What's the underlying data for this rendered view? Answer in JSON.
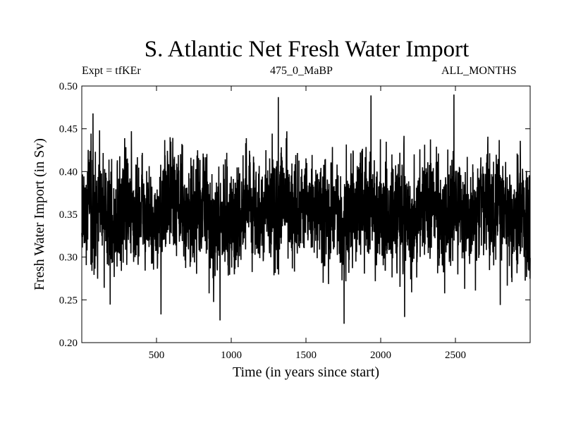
{
  "chart_data": {
    "type": "line",
    "title": "S. Atlantic Net Fresh Water Import",
    "subtitle_left": "Expt = tfKEr",
    "subtitle_center": "475_0_MaBP",
    "subtitle_right": "ALL_MONTHS",
    "xlabel": "Time (in years since start)",
    "ylabel": "Fresh Water Import (in Sv)",
    "xlim": [
      0,
      3000
    ],
    "ylim": [
      0.2,
      0.5
    ],
    "x_ticks": [
      500,
      1000,
      1500,
      2000,
      2500
    ],
    "y_ticks": [
      "0.20",
      "0.25",
      "0.30",
      "0.35",
      "0.40",
      "0.45",
      "0.50"
    ],
    "series": [
      {
        "x": [
          0,
          50,
          100,
          150,
          200,
          250,
          300,
          350,
          400,
          450,
          500,
          550,
          600,
          650,
          700,
          750,
          800,
          850,
          900,
          950,
          1000,
          1050,
          1100,
          1150,
          1200,
          1250,
          1300,
          1350,
          1400,
          1450,
          1500,
          1550,
          1600,
          1650,
          1700,
          1750,
          1800,
          1850,
          1900,
          1950,
          2000,
          2050,
          2100,
          2150,
          2200,
          2250,
          2300,
          2350,
          2400,
          2450,
          2500,
          2550,
          2600,
          2650,
          2700,
          2750,
          2800,
          2850,
          2900,
          2950,
          3000
        ],
        "values": [
          0.33,
          0.38,
          0.34,
          0.36,
          0.34,
          0.35,
          0.37,
          0.34,
          0.36,
          0.35,
          0.33,
          0.36,
          0.38,
          0.36,
          0.35,
          0.34,
          0.37,
          0.35,
          0.33,
          0.36,
          0.34,
          0.35,
          0.37,
          0.36,
          0.34,
          0.36,
          0.35,
          0.37,
          0.36,
          0.34,
          0.35,
          0.36,
          0.35,
          0.34,
          0.36,
          0.33,
          0.35,
          0.36,
          0.37,
          0.35,
          0.36,
          0.34,
          0.35,
          0.36,
          0.34,
          0.35,
          0.36,
          0.37,
          0.34,
          0.35,
          0.36,
          0.35,
          0.34,
          0.36,
          0.37,
          0.35,
          0.36,
          0.34,
          0.35,
          0.36,
          0.33
        ]
      }
    ],
    "peaks": [
      {
        "x": 75,
        "y": 0.468
      },
      {
        "x": 530,
        "y": 0.233
      },
      {
        "x": 925,
        "y": 0.226
      },
      {
        "x": 1315,
        "y": 0.487
      },
      {
        "x": 1755,
        "y": 0.222
      },
      {
        "x": 1935,
        "y": 0.489
      },
      {
        "x": 2160,
        "y": 0.23
      },
      {
        "x": 2490,
        "y": 0.49
      },
      {
        "x": 2800,
        "y": 0.244
      }
    ],
    "line_color": "#000000",
    "grid": false
  }
}
